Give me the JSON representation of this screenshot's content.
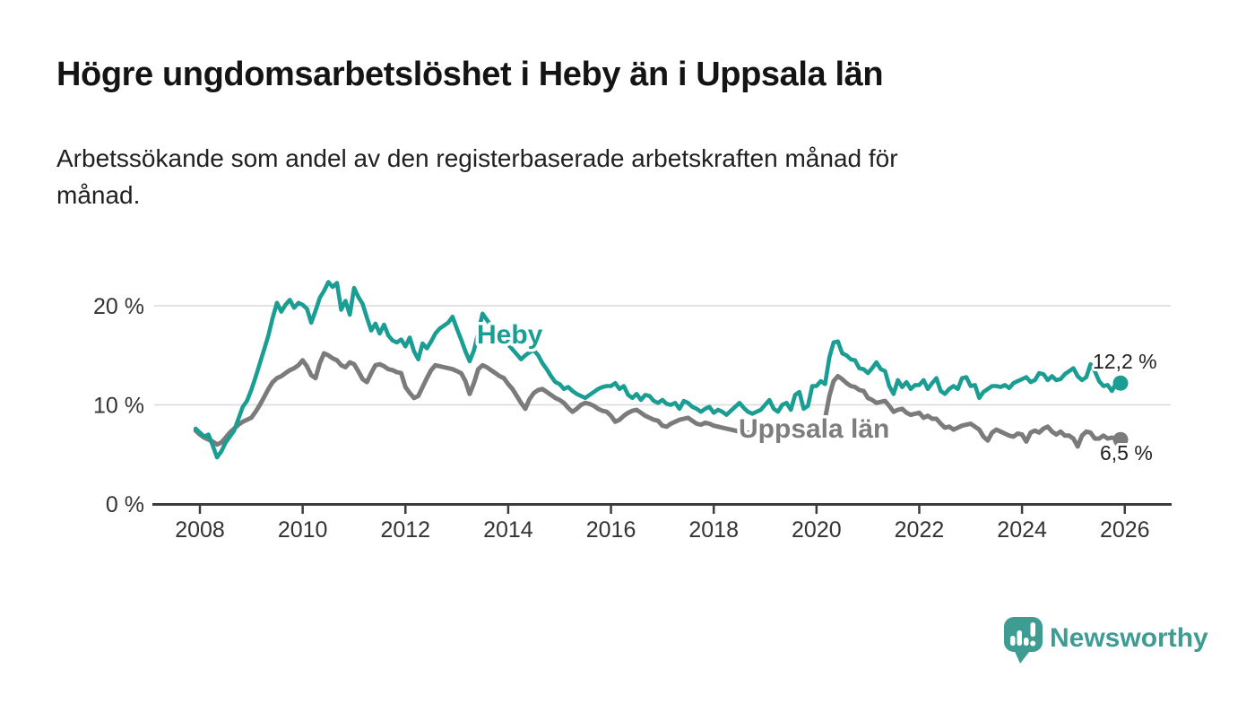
{
  "header": {
    "title": "Högre ungdomsarbetslöshet i Heby än i Uppsala län",
    "subtitle_line1": "Arbetssökande som andel av den registerbaserade arbetskraften månad för",
    "subtitle_line2": "månad."
  },
  "chart_data": {
    "type": "line",
    "unit": "%",
    "grid": "horizontal",
    "x_start_year": 2007.9167,
    "x_interval_years": 0.0833333,
    "xlim": [
      2007.8,
      2026.9
    ],
    "ylim": [
      0,
      23.5
    ],
    "x_ticks": [
      2008,
      2010,
      2012,
      2014,
      2016,
      2018,
      2020,
      2022,
      2024,
      2026
    ],
    "y_ticks": [
      0,
      10,
      20
    ],
    "y_tick_labels": [
      "0 %",
      "10 %",
      "20 %"
    ],
    "series": [
      {
        "name": "Heby",
        "color": "#1A9D92",
        "end_label": "12,2 %",
        "end_value": 12.2,
        "values": [
          7.6,
          7.2,
          6.8,
          7.0,
          5.9,
          4.7,
          5.3,
          6.2,
          6.8,
          7.4,
          8.6,
          9.8,
          10.4,
          11.5,
          12.8,
          14.2,
          15.6,
          17.0,
          18.8,
          20.3,
          19.4,
          20.1,
          20.6,
          19.8,
          20.3,
          20.1,
          19.7,
          18.3,
          19.5,
          20.8,
          21.5,
          22.4,
          21.9,
          22.3,
          19.6,
          20.5,
          19.1,
          21.8,
          20.9,
          20.2,
          18.8,
          17.5,
          18.2,
          17.2,
          18.1,
          17.0,
          16.5,
          16.3,
          16.6,
          15.9,
          16.8,
          15.4,
          14.6,
          16.2,
          15.7,
          16.4,
          17.2,
          17.7,
          18.0,
          18.3,
          18.9,
          17.7,
          16.6,
          15.4,
          14.4,
          15.5,
          17.3,
          19.2,
          18.6,
          18.0,
          17.4,
          16.8,
          16.3,
          16.1,
          15.6,
          15.1,
          14.6,
          15.0,
          15.3,
          15.5,
          15.0,
          14.2,
          13.6,
          12.9,
          12.3,
          12.1,
          11.6,
          11.8,
          11.4,
          11.1,
          10.9,
          10.7,
          11.0,
          11.3,
          11.6,
          11.8,
          11.9,
          11.9,
          12.2,
          11.6,
          11.9,
          11.0,
          10.7,
          11.1,
          10.5,
          11.0,
          10.9,
          10.4,
          10.2,
          10.5,
          10.1,
          10.0,
          10.2,
          9.6,
          10.4,
          10.2,
          9.8,
          9.6,
          9.3,
          9.6,
          9.8,
          9.2,
          9.5,
          9.3,
          9.0,
          9.4,
          9.8,
          10.2,
          9.7,
          9.3,
          9.1,
          9.3,
          9.5,
          10.0,
          10.5,
          9.6,
          9.3,
          10.0,
          10.2,
          9.5,
          11.0,
          11.3,
          9.6,
          9.9,
          11.9,
          11.9,
          12.4,
          12.1,
          14.8,
          16.3,
          16.4,
          15.2,
          15.0,
          14.6,
          14.5,
          13.7,
          13.6,
          13.2,
          13.7,
          14.3,
          13.6,
          13.4,
          11.9,
          11.1,
          12.5,
          11.8,
          12.3,
          11.6,
          12.0,
          12.0,
          12.5,
          11.6,
          12.2,
          12.7,
          11.4,
          11.1,
          11.6,
          11.9,
          11.6,
          12.7,
          12.8,
          11.9,
          12.0,
          10.7,
          11.3,
          11.6,
          11.9,
          11.9,
          11.8,
          12.0,
          11.7,
          12.2,
          12.4,
          12.6,
          12.8,
          12.3,
          12.5,
          13.2,
          13.1,
          12.5,
          12.9,
          12.5,
          12.6,
          13.1,
          13.4,
          13.7,
          12.9,
          12.5,
          12.8,
          14.1,
          13.4,
          12.4,
          11.9,
          12.0,
          11.4,
          12.2,
          12.2
        ]
      },
      {
        "name": "Uppsala län",
        "color": "#7B7B7B",
        "label_color": "#7D7D7D",
        "end_label": "6,5 %",
        "end_value": 6.5,
        "values": [
          7.4,
          7.0,
          6.7,
          6.5,
          6.3,
          6.0,
          6.2,
          6.7,
          7.2,
          7.6,
          8.0,
          8.3,
          8.5,
          8.7,
          9.3,
          10.0,
          10.8,
          11.6,
          12.3,
          12.7,
          12.9,
          13.2,
          13.5,
          13.7,
          14.0,
          14.5,
          13.9,
          13.0,
          12.7,
          14.2,
          15.2,
          15.0,
          14.7,
          14.5,
          14.0,
          13.8,
          14.3,
          14.1,
          13.4,
          12.6,
          12.3,
          13.2,
          14.0,
          14.1,
          13.9,
          13.6,
          13.5,
          13.3,
          13.2,
          11.8,
          11.2,
          10.7,
          10.9,
          11.8,
          12.7,
          13.5,
          14.0,
          13.9,
          13.8,
          13.7,
          13.6,
          13.4,
          13.2,
          12.4,
          11.1,
          12.2,
          13.6,
          14.0,
          13.8,
          13.5,
          13.2,
          12.9,
          12.7,
          12.1,
          11.6,
          10.9,
          10.2,
          9.6,
          10.6,
          11.2,
          11.5,
          11.6,
          11.3,
          11.0,
          10.7,
          10.5,
          10.2,
          9.7,
          9.3,
          9.6,
          10.0,
          10.2,
          10.1,
          9.9,
          9.6,
          9.4,
          9.3,
          8.9,
          8.3,
          8.5,
          8.9,
          9.2,
          9.4,
          9.5,
          9.2,
          8.9,
          8.7,
          8.5,
          8.4,
          7.9,
          7.8,
          8.1,
          8.3,
          8.5,
          8.6,
          8.7,
          8.4,
          8.1,
          8.0,
          8.2,
          8.1,
          7.9,
          7.8,
          7.7,
          7.6,
          7.5,
          7.4,
          7.3,
          7.2,
          7.2,
          7.1,
          7.0,
          7.0,
          7.0,
          7.1,
          7.2,
          7.1,
          7.0,
          7.2,
          7.4,
          7.5,
          7.4,
          7.3,
          7.5,
          7.7,
          7.9,
          8.1,
          8.6,
          10.9,
          12.4,
          12.9,
          12.6,
          12.2,
          11.9,
          11.8,
          11.5,
          11.4,
          10.7,
          10.5,
          10.2,
          10.3,
          10.4,
          9.9,
          9.3,
          9.5,
          9.6,
          9.2,
          9.0,
          9.1,
          9.2,
          8.7,
          8.9,
          8.6,
          8.6,
          8.1,
          7.7,
          7.8,
          7.5,
          7.7,
          7.9,
          8.0,
          8.1,
          7.8,
          7.5,
          6.8,
          6.4,
          7.2,
          7.5,
          7.3,
          7.1,
          6.9,
          6.8,
          7.1,
          7.0,
          6.3,
          7.2,
          7.4,
          7.2,
          7.6,
          7.8,
          7.3,
          7.0,
          7.3,
          6.9,
          6.9,
          6.6,
          5.8,
          6.9,
          7.3,
          7.2,
          6.6,
          6.6,
          6.9,
          6.6,
          6.7,
          6.6,
          6.5
        ]
      }
    ]
  },
  "branding": {
    "logo_text": "Newsworthy",
    "color": "#3E9C92"
  }
}
